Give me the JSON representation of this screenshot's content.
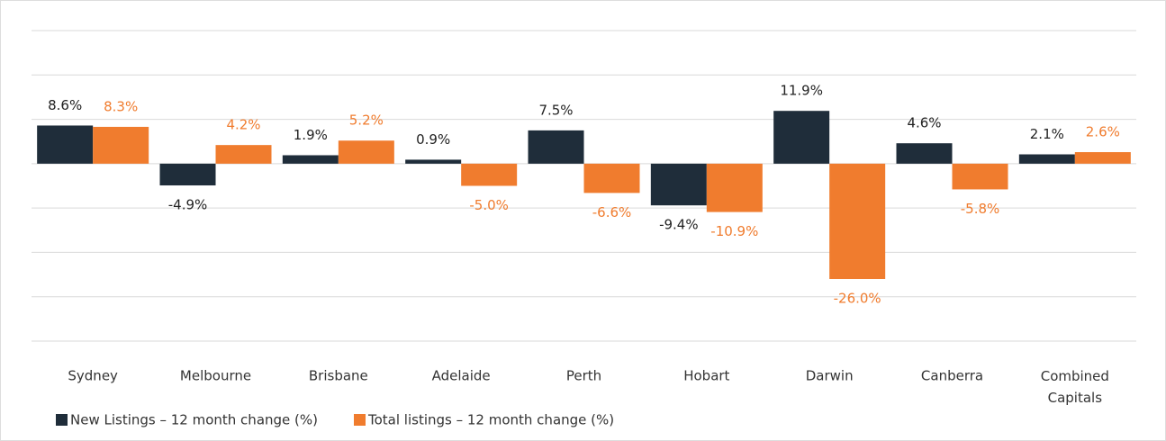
{
  "chart_data": {
    "type": "bar",
    "categories": [
      "Sydney",
      "Melbourne",
      "Brisbane",
      "Adelaide",
      "Perth",
      "Hobart",
      "Darwin",
      "Canberra",
      "Combined Capitals"
    ],
    "series": [
      {
        "name": "New Listings – 12 month change (%)",
        "color": "#1f2d3a",
        "values": [
          8.6,
          -4.9,
          1.9,
          0.9,
          7.5,
          -9.4,
          11.9,
          4.6,
          2.1
        ],
        "value_labels": [
          "8.6%",
          "-4.9%",
          "1.9%",
          "0.9%",
          "7.5%",
          "-9.4%",
          "11.9%",
          "4.6%",
          "2.1%"
        ]
      },
      {
        "name": "Total listings – 12 month change (%)",
        "color": "#f07c2e",
        "values": [
          8.3,
          4.2,
          5.2,
          -5.0,
          -6.6,
          -10.9,
          -26.0,
          -5.8,
          2.6
        ],
        "value_labels": [
          "8.3%",
          "4.2%",
          "5.2%",
          "-5.0%",
          "-6.6%",
          "-10.9%",
          "-26.0%",
          "-5.8%",
          "2.6%"
        ]
      }
    ],
    "ylim": [
      -40,
      30
    ],
    "yticks": [
      -40,
      -30,
      -20,
      -10,
      0,
      10,
      20,
      30
    ],
    "grid": true,
    "legend": "bottom-left"
  }
}
